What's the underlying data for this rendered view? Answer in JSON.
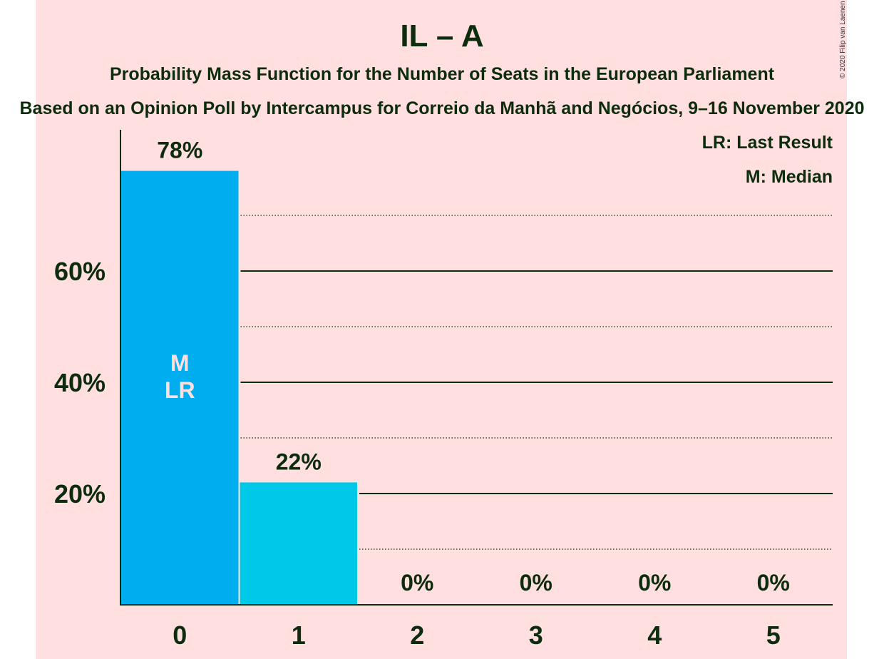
{
  "title": "IL – A",
  "subtitle": "Probability Mass Function for the Number of Seats in the European Parliament",
  "subtitle2": "Based on an Opinion Poll by Intercampus for Correio da Manhã and Negócios, 9–16 November 2020",
  "copyright": "© 2020 Filip van Laenen",
  "legend": {
    "lr": "LR: Last Result",
    "m": "M: Median"
  },
  "colors": {
    "background": "#ffdfe0",
    "bar_primary": "#00adef",
    "bar_secondary": "#00c8e8",
    "text": "#0d2b0d"
  },
  "chart_data": {
    "type": "bar",
    "title": "IL – A",
    "categories": [
      "0",
      "1",
      "2",
      "3",
      "4",
      "5"
    ],
    "values": [
      78,
      22,
      0,
      0,
      0,
      0
    ],
    "value_labels": [
      "78%",
      "22%",
      "0%",
      "0%",
      "0%",
      "0%"
    ],
    "ylim": [
      0,
      85
    ],
    "yticks": [
      20,
      40,
      60
    ],
    "ytick_labels": [
      "20%",
      "40%",
      "60%"
    ],
    "minor_gridlines": [
      10,
      30,
      50,
      70
    ],
    "bar_annotations": [
      {
        "category": "0",
        "lines": [
          "M",
          "LR"
        ]
      }
    ],
    "xlabel": "",
    "ylabel": ""
  }
}
